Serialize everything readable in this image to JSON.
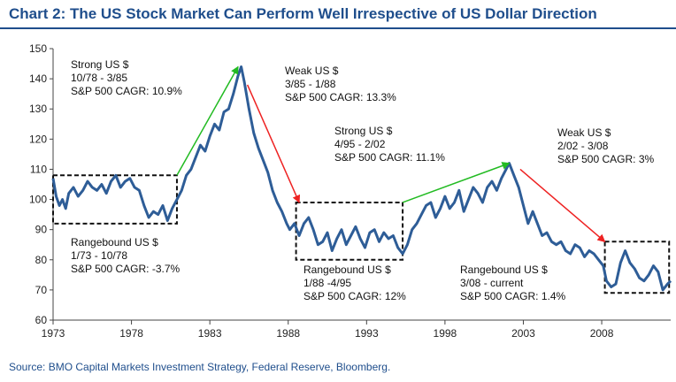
{
  "title": "Chart 2: The US Stock Market Can Perform Well Irrespective of US Dollar Direction",
  "source": "Source: BMO Capital Markets Investment Strategy, Federal Reserve, Bloomberg.",
  "colors": {
    "title": "#1f4e8c",
    "series": "#2e5d97",
    "up_arrow": "#22bb22",
    "down_arrow": "#ee2222",
    "box": "#111111"
  },
  "chart_data": {
    "type": "line",
    "title": "Chart 2: The US Stock Market Can Perform Well Irrespective of US Dollar Direction",
    "xlim": [
      1973,
      2012.4
    ],
    "ylim": [
      60,
      150
    ],
    "x_ticks": [
      "1973",
      "1978",
      "1983",
      "1988",
      "1993",
      "1998",
      "2003",
      "2008"
    ],
    "y_ticks": [
      "60",
      "70",
      "80",
      "90",
      "100",
      "110",
      "120",
      "130",
      "140",
      "150"
    ],
    "grid": false,
    "series": [
      {
        "x": [
          1973.0,
          1973.2,
          1973.4,
          1973.6,
          1973.8,
          1974.0,
          1974.3,
          1974.6,
          1974.9,
          1975.2,
          1975.5,
          1975.8,
          1976.1,
          1976.4,
          1976.7,
          1977.0,
          1977.3,
          1977.6,
          1977.9,
          1978.2,
          1978.5,
          1978.8,
          1979.1,
          1979.4,
          1979.7,
          1980.0,
          1980.3,
          1980.6,
          1980.9,
          1981.2,
          1981.5,
          1981.8,
          1982.1,
          1982.4,
          1982.7,
          1983.0,
          1983.3,
          1983.6,
          1983.9,
          1984.2,
          1984.5,
          1984.8,
          1985.0,
          1985.2,
          1985.5,
          1985.8,
          1986.1,
          1986.4,
          1986.7,
          1987.0,
          1987.3,
          1987.6,
          1987.9,
          1988.1,
          1988.4,
          1988.7,
          1989.0,
          1989.3,
          1989.6,
          1989.9,
          1990.2,
          1990.5,
          1990.8,
          1991.1,
          1991.4,
          1991.7,
          1992.0,
          1992.3,
          1992.6,
          1992.9,
          1993.2,
          1993.5,
          1993.8,
          1994.1,
          1994.4,
          1994.7,
          1995.0,
          1995.3,
          1995.6,
          1995.9,
          1996.2,
          1996.5,
          1996.8,
          1997.1,
          1997.4,
          1997.7,
          1998.0,
          1998.3,
          1998.6,
          1998.9,
          1999.2,
          1999.5,
          1999.8,
          2000.1,
          2000.4,
          2000.7,
          2001.0,
          2001.3,
          2001.6,
          2001.9,
          2002.1,
          2002.4,
          2002.7,
          2003.0,
          2003.3,
          2003.6,
          2003.9,
          2004.2,
          2004.5,
          2004.8,
          2005.1,
          2005.4,
          2005.7,
          2006.0,
          2006.3,
          2006.6,
          2006.9,
          2007.2,
          2007.5,
          2007.8,
          2008.1,
          2008.3,
          2008.6,
          2008.9,
          2009.2,
          2009.5,
          2009.8,
          2010.1,
          2010.4,
          2010.7,
          2011.0,
          2011.3,
          2011.6,
          2011.9,
          2012.2,
          2012.4
        ],
        "values": [
          107,
          101,
          98,
          100,
          97,
          102,
          104,
          101,
          103,
          106,
          104,
          103,
          105,
          102,
          106,
          108,
          104,
          106,
          107,
          104,
          103,
          98,
          94,
          96,
          95,
          98,
          93,
          97,
          100,
          103,
          108,
          110,
          114,
          118,
          116,
          121,
          125,
          123,
          129,
          130,
          135,
          141,
          144,
          139,
          130,
          122,
          117,
          113,
          109,
          103,
          99,
          96,
          92,
          90,
          92,
          88,
          92,
          94,
          90,
          85,
          86,
          89,
          83,
          87,
          90,
          85,
          88,
          91,
          87,
          84,
          89,
          90,
          86,
          89,
          87,
          88,
          84,
          82,
          85,
          90,
          92,
          95,
          98,
          99,
          94,
          97,
          101,
          97,
          99,
          103,
          96,
          100,
          104,
          102,
          99,
          104,
          106,
          103,
          107,
          110,
          112,
          108,
          104,
          98,
          92,
          96,
          92,
          88,
          89,
          86,
          85,
          86,
          83,
          82,
          85,
          84,
          81,
          83,
          82,
          80,
          78,
          73,
          71,
          72,
          79,
          83,
          79,
          77,
          74,
          73,
          75,
          78,
          76,
          70,
          72,
          73
        ]
      }
    ],
    "annotations": [
      {
        "label": "Strong US $",
        "period": "10/78 - 3/85",
        "cagr": "S&P 500 CAGR: 10.9%"
      },
      {
        "label": "Weak US $",
        "period": "3/85 - 1/88",
        "cagr": "S&P 500 CAGR: 13.3%"
      },
      {
        "label": "Strong US $",
        "period": "4/95 - 2/02",
        "cagr": "S&P 500 CAGR: 11.1%"
      },
      {
        "label": "Weak US $",
        "period": "2/02 - 3/08",
        "cagr": "S&P 500 CAGR: 3%"
      },
      {
        "label": "Rangebound US $",
        "period": "1/73 - 10/78",
        "cagr": "S&P 500 CAGR: -3.7%"
      },
      {
        "label": "Rangebound US $",
        "period": "1/88 -4/95",
        "cagr": "S&P 500 CAGR: 12%"
      },
      {
        "label": "Rangebound US $",
        "period": "3/08 - current",
        "cagr": "S&P 500 CAGR: 1.4%"
      }
    ],
    "boxes": [
      {
        "x": [
          1973,
          1980.9
        ],
        "y": [
          92,
          108
        ]
      },
      {
        "x": [
          1988.5,
          1995.3
        ],
        "y": [
          80,
          99
        ]
      },
      {
        "x": [
          2008.2,
          2012.3
        ],
        "y": [
          69,
          86
        ]
      }
    ],
    "arrows": [
      {
        "direction": "up",
        "from": [
          1980.9,
          108
        ],
        "to": [
          1984.8,
          144
        ]
      },
      {
        "direction": "down",
        "from": [
          1985.4,
          138
        ],
        "to": [
          1988.7,
          99
        ]
      },
      {
        "direction": "up",
        "from": [
          1995.3,
          99
        ],
        "to": [
          2002.1,
          112
        ]
      },
      {
        "direction": "down",
        "from": [
          2002.8,
          110
        ],
        "to": [
          2008.2,
          86
        ]
      }
    ]
  }
}
